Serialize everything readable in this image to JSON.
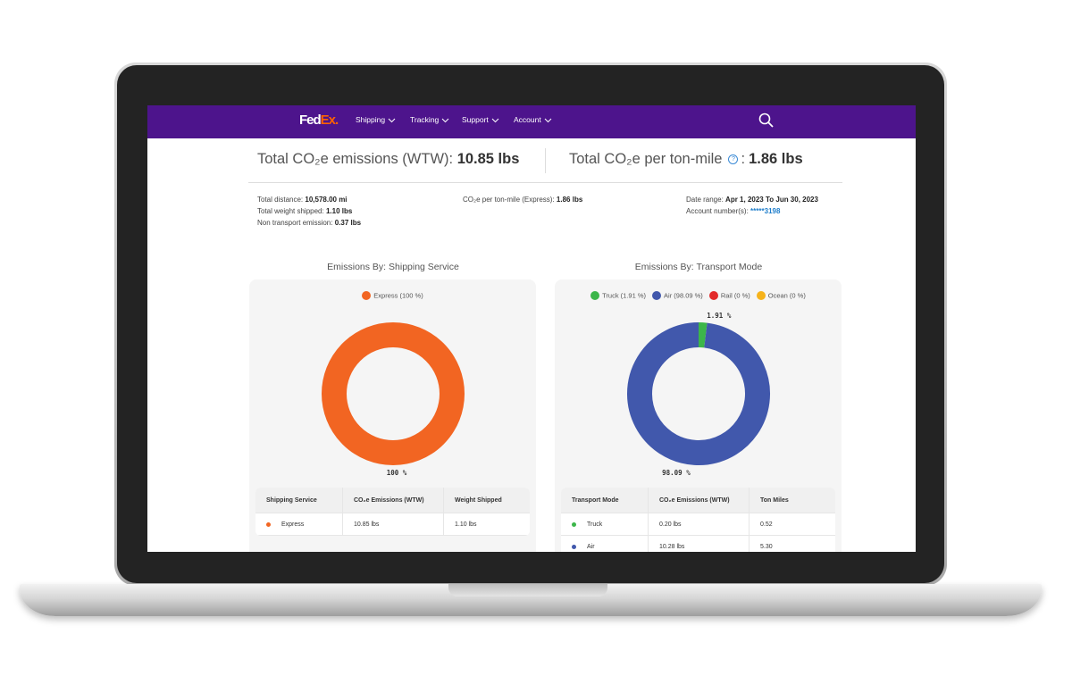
{
  "nav": {
    "logo": [
      "Fed",
      "Ex."
    ],
    "items": [
      "Shipping",
      "Tracking",
      "Support",
      "Account"
    ]
  },
  "summary": [
    {
      "label": "Total CO₂e emissions (WTW):",
      "value": "10.85 lbs"
    },
    {
      "label": "Total CO₂e per ton-mile",
      "help_icon": "?",
      "separator": ":",
      "value": "1.86 lbs"
    }
  ],
  "details": [
    [
      {
        "label": "Total distance:",
        "value": "10,578.00 mi"
      },
      {
        "label": "Total weight shipped:",
        "value": "1.10 lbs"
      },
      {
        "label": "Non transport emission:",
        "value": "0.37 lbs"
      }
    ],
    [
      {
        "label": "CO₂e per ton-mile (Express):",
        "value": "1.86 lbs"
      }
    ],
    [
      {
        "label": "Date range:",
        "value": "Apr 1, 2023 To Jun 30, 2023"
      },
      {
        "label": "Account number(s):",
        "value": "*****3198"
      }
    ]
  ],
  "chart_data": [
    {
      "type": "donut",
      "title": "Emissions By: Shipping Service",
      "categories": [
        "Express"
      ],
      "values": [
        100
      ],
      "colors": [
        "#f26522"
      ],
      "legend_labels": [
        "Express (100 %)"
      ],
      "value_labels": [
        "100 %"
      ]
    },
    {
      "type": "donut",
      "title": "Emissions By: Transport Mode",
      "categories": [
        "Truck",
        "Air",
        "Rail",
        "Ocean"
      ],
      "values": [
        1.91,
        98.09,
        0,
        0
      ],
      "colors": [
        "#3cb64a",
        "#4158ac",
        "#e32a2a",
        "#f6b31b"
      ],
      "legend_labels": [
        "Truck (1.91 %)",
        "Air (98.09 %)",
        "Rail (0 %)",
        "Ocean (0 %)"
      ],
      "value_labels": [
        "1.91 %",
        "98.09 %",
        null,
        null
      ]
    }
  ],
  "tables": [
    {
      "columns": [
        "Shipping Service",
        "CO₂e Emissions (WTW)",
        "Weight Shipped"
      ],
      "rows": [
        [
          "Express",
          "10.85 lbs",
          "1.10 lbs"
        ]
      ]
    },
    {
      "columns": [
        "Transport Mode",
        "CO₂e Emissions (WTW)",
        "Ton Miles"
      ],
      "rows": [
        [
          "Truck",
          "0.20 lbs",
          "0.52"
        ],
        [
          "Air",
          "10.28 lbs",
          "5.30"
        ]
      ]
    }
  ]
}
